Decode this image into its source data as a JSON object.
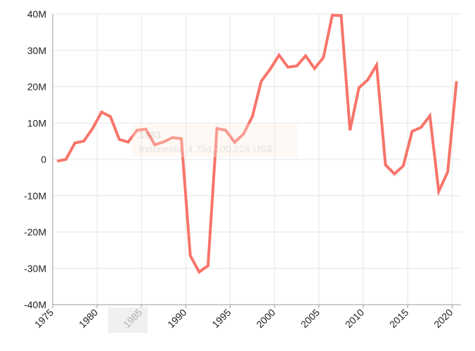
{
  "chart_data": {
    "type": "line",
    "title": "",
    "xlabel": "",
    "ylabel": "",
    "xlim": [
      1975,
      2021
    ],
    "ylim": [
      -40000000,
      40000000
    ],
    "x_ticks": [
      1975,
      1980,
      1985,
      1990,
      1995,
      2000,
      2005,
      2010,
      2015,
      2020
    ],
    "x_tick_labels": [
      "1975",
      "1980",
      "1985",
      "1990",
      "1995",
      "2000",
      "2005",
      "2010",
      "2015",
      "2020"
    ],
    "y_ticks": [
      -40000000,
      -30000000,
      -20000000,
      -10000000,
      0,
      10000000,
      20000000,
      30000000,
      40000000
    ],
    "y_tick_labels": [
      "-40M",
      "-30M",
      "-20M",
      "-10M",
      "0",
      "10M",
      "20M",
      "30M",
      "40M"
    ],
    "grid": true,
    "legend": "none",
    "series": [
      {
        "color": "#f8746a",
        "x": [
          1975.5,
          1976.5,
          1977.5,
          1978.5,
          1979.5,
          1980.5,
          1981.5,
          1982.5,
          1983.5,
          1984.5,
          1985.5,
          1986.5,
          1987.5,
          1988.5,
          1989.5,
          1990.5,
          1991.5,
          1992.5,
          1993.5,
          1994.5,
          1995.5,
          1996.5,
          1997.5,
          1998.5,
          1999.5,
          2000.5,
          2001.5,
          2002.5,
          2003.5,
          2004.5,
          2005.5,
          2006.5,
          2007.5,
          2008.5,
          2009.5,
          2010.5,
          2011.5,
          2012.5,
          2013.5,
          2014.5,
          2015.5,
          2016.5,
          2017.5,
          2018.5,
          2019.5,
          2020.5
        ],
        "y": [
          -500000,
          0,
          4500000,
          5000000,
          8500000,
          13000000,
          11800000,
          5500000,
          4754100,
          8000000,
          8300000,
          4000000,
          4800000,
          6000000,
          5700000,
          -26500000,
          -31000000,
          -29300000,
          8500000,
          8000000,
          4700000,
          7000000,
          11800000,
          21500000,
          24800000,
          28700000,
          25400000,
          25700000,
          28500000,
          25000000,
          28000000,
          39700000,
          39600000,
          8000000,
          19700000,
          21900000,
          26000000,
          -1500000,
          -4000000,
          -1800000,
          7700000,
          8800000,
          12000000,
          -8800000,
          -3500000,
          21500000
        ]
      }
    ],
    "tooltip": {
      "year": "1983",
      "text": "Indonesia: 4.754.100.224 US$"
    }
  }
}
